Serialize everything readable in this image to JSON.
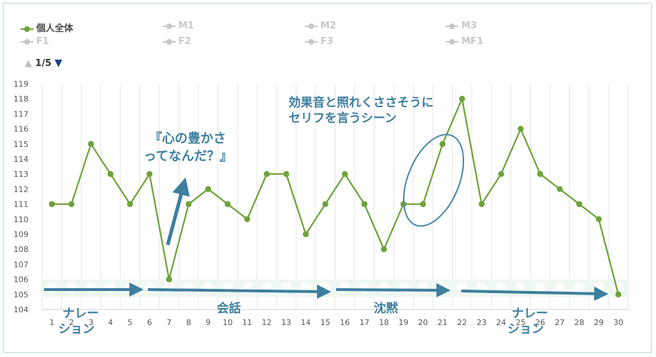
{
  "legend": {
    "items": [
      {
        "label": "個人全体",
        "active": true
      },
      {
        "label": "M1",
        "active": false
      },
      {
        "label": "M2",
        "active": false
      },
      {
        "label": "M3",
        "active": false
      },
      {
        "label": "F1",
        "active": false
      },
      {
        "label": "F2",
        "active": false
      },
      {
        "label": "F3",
        "active": false
      },
      {
        "label": "MF1",
        "active": false
      }
    ],
    "pager": "1/5",
    "pager_up_icon": "triangle-up-icon",
    "pager_down_icon": "triangle-down-icon"
  },
  "annotations": {
    "quote_line1": "『心の豊かさ",
    "quote_line2": "ってなんだ？』",
    "sfx_line1": "効果音と照れくささそうに",
    "sfx_line2": "セリフを言うシーン",
    "segment_narration1_line1": "ナレー",
    "segment_narration1_line2": "ション",
    "segment_conversation": "会話",
    "segment_silence": "沈黙",
    "segment_narration2_line1": "ナレー",
    "segment_narration2_line2": "ション"
  },
  "colors": {
    "series": "#6ea23a",
    "grid": "#e6e6e6",
    "annotation": "#3d7f9e",
    "band": "#eef7f0",
    "legend_inactive": "#c8c8c8"
  },
  "chart_data": {
    "type": "line",
    "x": [
      1,
      2,
      3,
      4,
      5,
      6,
      7,
      8,
      9,
      10,
      11,
      12,
      13,
      14,
      15,
      16,
      17,
      18,
      19,
      20,
      21,
      22,
      23,
      24,
      25,
      26,
      27,
      28,
      29,
      30
    ],
    "series": [
      {
        "name": "個人全体",
        "values": [
          111,
          111,
          115,
          113,
          111,
          113,
          106,
          111,
          112,
          111,
          110,
          113,
          113,
          109,
          111,
          113,
          111,
          108,
          111,
          111,
          115,
          118,
          111,
          113,
          116,
          113,
          112,
          111,
          110,
          105
        ]
      }
    ],
    "ylim": [
      104,
      119
    ],
    "yticks": [
      104,
      105,
      106,
      107,
      108,
      109,
      110,
      111,
      112,
      113,
      114,
      115,
      116,
      117,
      118,
      119
    ],
    "grid": "vertical",
    "legend": "top-left"
  }
}
